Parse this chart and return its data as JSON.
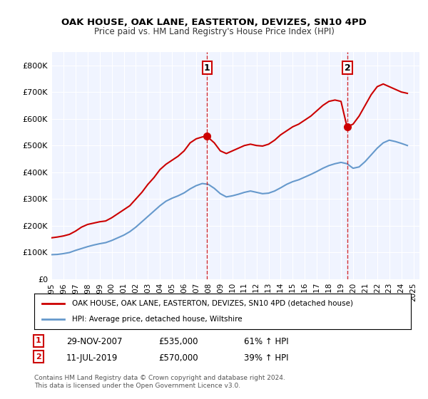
{
  "title": "OAK HOUSE, OAK LANE, EASTERTON, DEVIZES, SN10 4PD",
  "subtitle": "Price paid vs. HM Land Registry's House Price Index (HPI)",
  "legend_line1": "OAK HOUSE, OAK LANE, EASTERTON, DEVIZES, SN10 4PD (detached house)",
  "legend_line2": "HPI: Average price, detached house, Wiltshire",
  "transaction1_date": "29-NOV-2007",
  "transaction1_price": 535000,
  "transaction1_hpi": "61% ↑ HPI",
  "transaction1_label": "1",
  "transaction1_year": 2007.91,
  "transaction2_date": "11-JUL-2019",
  "transaction2_price": 570000,
  "transaction2_hpi": "39% ↑ HPI",
  "transaction2_label": "2",
  "transaction2_year": 2019.53,
  "footnote": "Contains HM Land Registry data © Crown copyright and database right 2024.\nThis data is licensed under the Open Government Licence v3.0.",
  "red_color": "#cc0000",
  "blue_color": "#6699cc",
  "line_color_dashed": "#cc0000",
  "background_color": "#f0f4ff",
  "ylim": [
    0,
    850000
  ],
  "xlim_start": 1995.0,
  "xlim_end": 2025.5,
  "red_x": [
    1995.0,
    1995.5,
    1996.0,
    1996.5,
    1997.0,
    1997.5,
    1998.0,
    1998.5,
    1999.0,
    1999.5,
    2000.0,
    2000.5,
    2001.0,
    2001.5,
    2002.0,
    2002.5,
    2003.0,
    2003.5,
    2004.0,
    2004.5,
    2005.0,
    2005.5,
    2006.0,
    2006.5,
    2007.0,
    2007.5,
    2007.91,
    2008.0,
    2008.5,
    2009.0,
    2009.5,
    2010.0,
    2010.5,
    2011.0,
    2011.5,
    2012.0,
    2012.5,
    2013.0,
    2013.5,
    2014.0,
    2014.5,
    2015.0,
    2015.5,
    2016.0,
    2016.5,
    2017.0,
    2017.5,
    2018.0,
    2018.5,
    2019.0,
    2019.5,
    2019.53,
    2020.0,
    2020.5,
    2021.0,
    2021.5,
    2022.0,
    2022.5,
    2023.0,
    2023.5,
    2024.0,
    2024.5
  ],
  "red_y": [
    155000,
    158000,
    162000,
    168000,
    180000,
    195000,
    205000,
    210000,
    215000,
    218000,
    230000,
    245000,
    260000,
    275000,
    300000,
    325000,
    355000,
    380000,
    410000,
    430000,
    445000,
    460000,
    480000,
    510000,
    525000,
    532000,
    535000,
    530000,
    510000,
    480000,
    470000,
    480000,
    490000,
    500000,
    505000,
    500000,
    498000,
    505000,
    520000,
    540000,
    555000,
    570000,
    580000,
    595000,
    610000,
    630000,
    650000,
    665000,
    670000,
    665000,
    570000,
    570000,
    580000,
    610000,
    650000,
    690000,
    720000,
    730000,
    720000,
    710000,
    700000,
    695000
  ],
  "blue_x": [
    1995.0,
    1995.5,
    1996.0,
    1996.5,
    1997.0,
    1997.5,
    1998.0,
    1998.5,
    1999.0,
    1999.5,
    2000.0,
    2000.5,
    2001.0,
    2001.5,
    2002.0,
    2002.5,
    2003.0,
    2003.5,
    2004.0,
    2004.5,
    2005.0,
    2005.5,
    2006.0,
    2006.5,
    2007.0,
    2007.5,
    2008.0,
    2008.5,
    2009.0,
    2009.5,
    2010.0,
    2010.5,
    2011.0,
    2011.5,
    2012.0,
    2012.5,
    2013.0,
    2013.5,
    2014.0,
    2014.5,
    2015.0,
    2015.5,
    2016.0,
    2016.5,
    2017.0,
    2017.5,
    2018.0,
    2018.5,
    2019.0,
    2019.5,
    2020.0,
    2020.5,
    2021.0,
    2021.5,
    2022.0,
    2022.5,
    2023.0,
    2023.5,
    2024.0,
    2024.5
  ],
  "blue_y": [
    92000,
    93000,
    96000,
    100000,
    108000,
    115000,
    122000,
    128000,
    133000,
    137000,
    145000,
    155000,
    165000,
    178000,
    195000,
    215000,
    235000,
    255000,
    275000,
    292000,
    303000,
    312000,
    323000,
    338000,
    350000,
    358000,
    355000,
    340000,
    320000,
    308000,
    312000,
    318000,
    325000,
    330000,
    325000,
    320000,
    322000,
    330000,
    342000,
    355000,
    365000,
    372000,
    382000,
    392000,
    403000,
    415000,
    425000,
    432000,
    437000,
    432000,
    415000,
    420000,
    440000,
    465000,
    490000,
    510000,
    520000,
    515000,
    508000,
    500000
  ],
  "yticks": [
    0,
    100000,
    200000,
    300000,
    400000,
    500000,
    600000,
    700000,
    800000
  ],
  "ytick_labels": [
    "£0",
    "£100K",
    "£200K",
    "£300K",
    "£400K",
    "£500K",
    "£600K",
    "£700K",
    "£800K"
  ],
  "xticks": [
    1995,
    1996,
    1997,
    1998,
    1999,
    2000,
    2001,
    2002,
    2003,
    2004,
    2005,
    2006,
    2007,
    2008,
    2009,
    2010,
    2011,
    2012,
    2013,
    2014,
    2015,
    2016,
    2017,
    2018,
    2019,
    2020,
    2021,
    2022,
    2023,
    2024,
    2025
  ]
}
